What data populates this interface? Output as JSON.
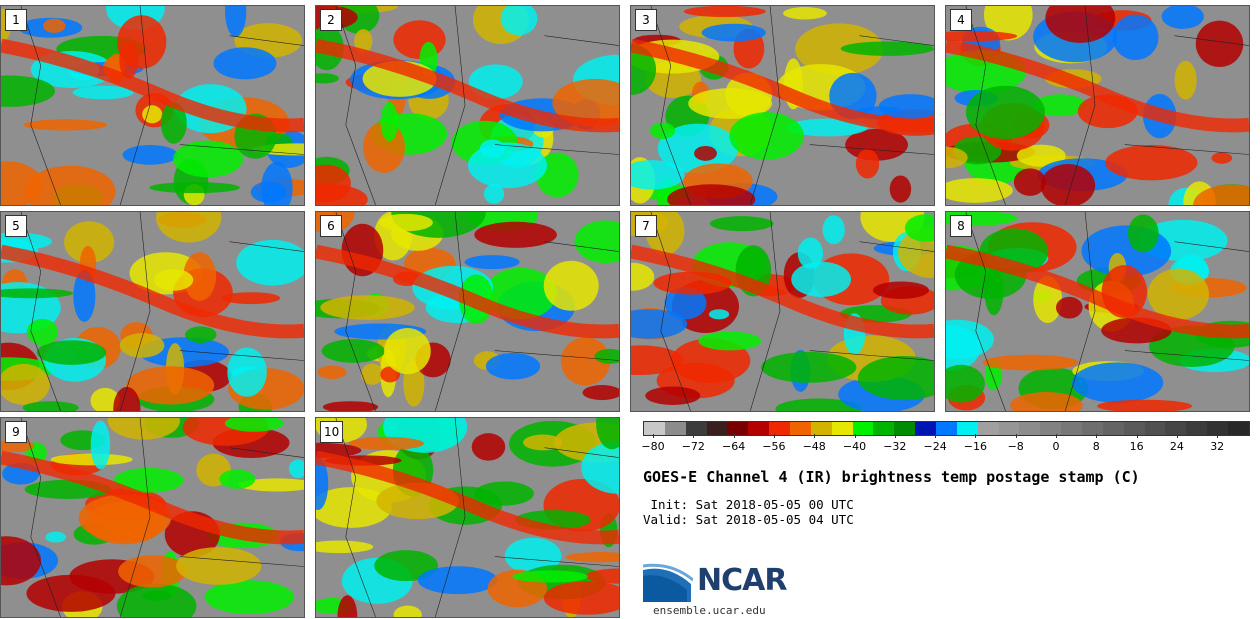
{
  "panels": [
    {
      "label": "1"
    },
    {
      "label": "2"
    },
    {
      "label": "3"
    },
    {
      "label": "4"
    },
    {
      "label": "5"
    },
    {
      "label": "6"
    },
    {
      "label": "7"
    },
    {
      "label": "8"
    },
    {
      "label": "9"
    },
    {
      "label": "10"
    }
  ],
  "colorbar": {
    "colors": [
      "#c8c8c8",
      "#8c8c8c",
      "#3c3c3c",
      "#3c1e1e",
      "#780000",
      "#b40000",
      "#f02800",
      "#f06400",
      "#d2b400",
      "#e6e600",
      "#00f000",
      "#00b400",
      "#008c00",
      "#0014b4",
      "#0078ff",
      "#00f0f0",
      "#a0a0a0",
      "#969696",
      "#8c8c8c",
      "#828282",
      "#787878",
      "#6e6e6e",
      "#646464",
      "#5a5a5a",
      "#505050",
      "#464646",
      "#3c3c3c",
      "#323232",
      "#282828"
    ],
    "tick_labels": [
      "−80",
      "−72",
      "−64",
      "−56",
      "−48",
      "−40",
      "−32",
      "−24",
      "−16",
      "−8",
      "0",
      "8",
      "16",
      "24",
      "32"
    ]
  },
  "title": "GOES-E Channel 4 (IR) brightness temp postage stamp (C)",
  "init": " Init: Sat 2018-05-05 00 UTC",
  "valid": "Valid: Sat 2018-05-05 04 UTC",
  "logo": {
    "text": "NCAR"
  },
  "site": "ensemble.ucar.edu"
}
